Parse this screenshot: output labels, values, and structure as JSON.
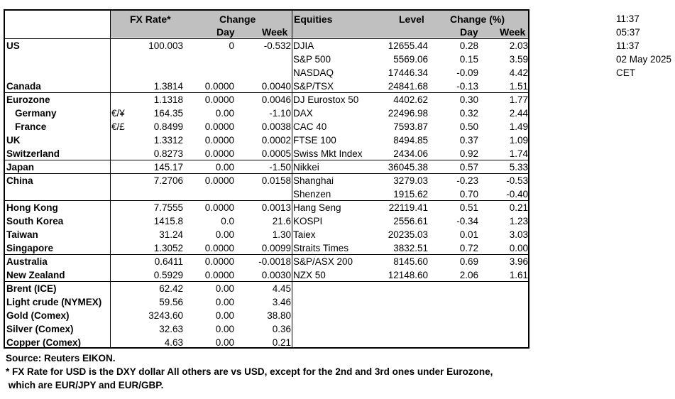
{
  "header": {
    "fx_rate": "FX Rate*",
    "change": "Change",
    "day": "Day",
    "week": "Week",
    "equities": "Equities",
    "level": "Level",
    "change_pct": "Change (%)",
    "eq_day": "Day",
    "eq_week": "Week"
  },
  "times": [
    "11:37",
    "05:37",
    "11:37",
    "02 May 2025",
    "CET"
  ],
  "rows": [
    {
      "region": "US",
      "sub": "",
      "sym": "",
      "rate": "100.003",
      "day": "0",
      "week": "-0.532",
      "eq": "DJIA",
      "level": "12655.44",
      "eq_day": "0.28",
      "eq_week": "2.03"
    },
    {
      "region": "",
      "sub": "",
      "sym": "",
      "rate": "",
      "day": "",
      "week": "",
      "eq": "S&P 500",
      "level": "5569.06",
      "eq_day": "0.15",
      "eq_week": "3.59"
    },
    {
      "region": "",
      "sub": "",
      "sym": "",
      "rate": "",
      "day": "",
      "week": "",
      "eq": "NASDAQ",
      "level": "17446.34",
      "eq_day": "-0.09",
      "eq_week": "4.42"
    },
    {
      "region": "Canada",
      "sub": "",
      "sym": "",
      "rate": "1.3814",
      "day": "0.0000",
      "week": "0.0040",
      "eq": "S&P/TSX",
      "level": "24841.68",
      "eq_day": "-0.13",
      "eq_week": "1.51"
    },
    {
      "region": "Eurozone",
      "sub": "",
      "sym": "",
      "rate": "1.1318",
      "day": "0.0000",
      "week": "0.0046",
      "eq": "DJ Eurostox 50",
      "level": "4402.62",
      "eq_day": "0.30",
      "eq_week": "1.77"
    },
    {
      "region": "",
      "sub": "Germany",
      "sym": "€/¥",
      "rate": "164.35",
      "day": "0.00",
      "week": "-1.10",
      "eq": "DAX",
      "level": "22496.98",
      "eq_day": "0.32",
      "eq_week": "2.44"
    },
    {
      "region": "",
      "sub": "France",
      "sym": "€/£",
      "rate": "0.8499",
      "day": "0.0000",
      "week": "0.0038",
      "eq": "CAC 40",
      "level": "7593.87",
      "eq_day": "0.50",
      "eq_week": "1.49"
    },
    {
      "region": "UK",
      "sub": "",
      "sym": "",
      "rate": "1.3312",
      "day": "0.0000",
      "week": "0.0002",
      "eq": "FTSE 100",
      "level": "8494.85",
      "eq_day": "0.37",
      "eq_week": "1.09"
    },
    {
      "region": "Switzerland",
      "sub": "",
      "sym": "",
      "rate": "0.8273",
      "day": "0.0000",
      "week": "0.0005",
      "eq": "Swiss Mkt Index",
      "level": "2434.06",
      "eq_day": "0.92",
      "eq_week": "1.74"
    },
    {
      "region": "Japan",
      "sub": "",
      "sym": "",
      "rate": "145.17",
      "day": "0.00",
      "week": "-1.50",
      "eq": "Nikkei",
      "level": "36045.38",
      "eq_day": "0.57",
      "eq_week": "5.33"
    },
    {
      "region": "China",
      "sub": "",
      "sym": "",
      "rate": "7.2706",
      "day": "0.0000",
      "week": "0.0158",
      "eq": "Shanghai",
      "level": "3279.03",
      "eq_day": "-0.23",
      "eq_week": "-0.53"
    },
    {
      "region": "",
      "sub": "",
      "sym": "",
      "rate": "",
      "day": "",
      "week": "",
      "eq": "Shenzen",
      "level": "1915.62",
      "eq_day": "0.70",
      "eq_week": "-0.40"
    },
    {
      "region": "Hong Kong",
      "sub": "",
      "sym": "",
      "rate": "7.7555",
      "day": "0.0000",
      "week": "0.0013",
      "eq": "Hang Seng",
      "level": "22119.41",
      "eq_day": "0.51",
      "eq_week": "0.21"
    },
    {
      "region": "South Korea",
      "sub": "",
      "sym": "",
      "rate": "1415.8",
      "day": "0.0",
      "week": "21.6",
      "eq": "KOSPI",
      "level": "2556.61",
      "eq_day": "-0.34",
      "eq_week": "1.23"
    },
    {
      "region": "Taiwan",
      "sub": "",
      "sym": "",
      "rate": "31.24",
      "day": "0.00",
      "week": "1.30",
      "eq": "Taiex",
      "level": "20235.03",
      "eq_day": "0.01",
      "eq_week": "3.03"
    },
    {
      "region": "Singapore",
      "sub": "",
      "sym": "",
      "rate": "1.3052",
      "day": "0.0000",
      "week": "0.0099",
      "eq": "Straits Times",
      "level": "3832.51",
      "eq_day": "0.72",
      "eq_week": "0.00"
    },
    {
      "region": "Australia",
      "sub": "",
      "sym": "",
      "rate": "0.6411",
      "day": "0.0000",
      "week": "-0.0018",
      "eq": "S&P/ASX  200",
      "level": "8145.60",
      "eq_day": "0.69",
      "eq_week": "3.96"
    },
    {
      "region": "New Zealand",
      "sub": "",
      "sym": "",
      "rate": "0.5929",
      "day": "0.0000",
      "week": "0.0030",
      "eq": "NZX 50",
      "level": "12148.60",
      "eq_day": "2.06",
      "eq_week": "1.61"
    },
    {
      "region": "Brent (ICE)",
      "sub": "",
      "sym": "",
      "rate": "62.42",
      "day": "0.00",
      "week": "4.45",
      "eq": "",
      "level": "",
      "eq_day": "",
      "eq_week": ""
    },
    {
      "region": "Light crude (NYMEX)",
      "sub": "",
      "sym": "",
      "rate": "59.56",
      "day": "0.00",
      "week": "3.46",
      "eq": "",
      "level": "",
      "eq_day": "",
      "eq_week": ""
    },
    {
      "region": "Gold (Comex)",
      "sub": "",
      "sym": "",
      "rate": "3243.60",
      "day": "0.00",
      "week": "38.80",
      "eq": "",
      "level": "",
      "eq_day": "",
      "eq_week": ""
    },
    {
      "region": "Silver (Comex)",
      "sub": "",
      "sym": "",
      "rate": "32.63",
      "day": "0.00",
      "week": "0.36",
      "eq": "",
      "level": "",
      "eq_day": "",
      "eq_week": ""
    },
    {
      "region": "Copper (Comex)",
      "sub": "",
      "sym": "",
      "rate": "4.63",
      "day": "0.00",
      "week": "0.21",
      "eq": "",
      "level": "",
      "eq_day": "",
      "eq_week": ""
    }
  ],
  "footer": {
    "source": "Source:  Reuters EIKON.",
    "note1": "* FX Rate for USD is the DXY dollar  All others are vs USD, except for the 2nd and 3rd ones under Eurozone,",
    "note2": " which are EUR/JPY and EUR/GBP."
  }
}
